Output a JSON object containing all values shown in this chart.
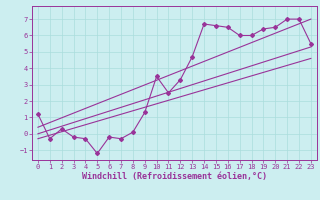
{
  "xlabel": "Windchill (Refroidissement éolien,°C)",
  "bg_color": "#cceef0",
  "line_color": "#993399",
  "grid_color": "#aadddd",
  "xlim": [
    -0.5,
    23.5
  ],
  "ylim": [
    -1.6,
    7.8
  ],
  "xticks": [
    0,
    1,
    2,
    3,
    4,
    5,
    6,
    7,
    8,
    9,
    10,
    11,
    12,
    13,
    14,
    15,
    16,
    17,
    18,
    19,
    20,
    21,
    22,
    23
  ],
  "yticks": [
    -1,
    0,
    1,
    2,
    3,
    4,
    5,
    6,
    7
  ],
  "data_x": [
    0,
    1,
    2,
    3,
    4,
    5,
    6,
    7,
    8,
    9,
    10,
    11,
    12,
    13,
    14,
    15,
    16,
    17,
    18,
    19,
    20,
    21,
    22,
    23
  ],
  "data_y": [
    1.2,
    -0.3,
    0.3,
    -0.2,
    -0.3,
    -1.2,
    -0.2,
    -0.3,
    0.1,
    1.3,
    3.5,
    2.5,
    3.3,
    4.7,
    6.7,
    6.6,
    6.5,
    6.0,
    6.0,
    6.4,
    6.5,
    7.0,
    7.0,
    5.5
  ],
  "line1_x": [
    0,
    23
  ],
  "line1_y": [
    0.0,
    5.3
  ],
  "line2_x": [
    0,
    23
  ],
  "line2_y": [
    0.4,
    7.0
  ],
  "line3_x": [
    0,
    23
  ],
  "line3_y": [
    -0.3,
    4.6
  ],
  "marker": "D",
  "markersize": 2.0,
  "linewidth": 0.8,
  "tick_fontsize": 5.0,
  "label_fontsize": 6.0
}
